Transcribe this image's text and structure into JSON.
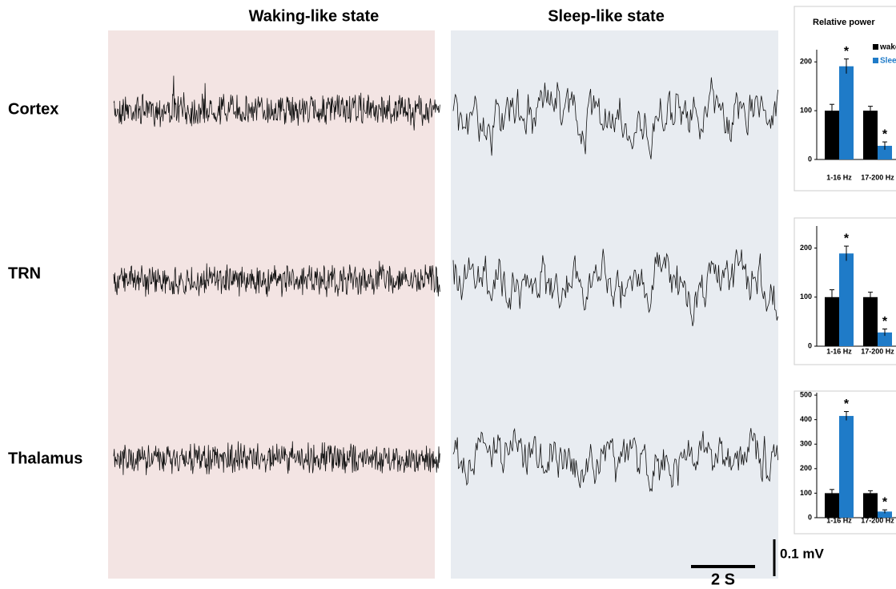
{
  "state_titles": [
    "Waking-like state",
    "Sleep-like state"
  ],
  "row_labels": [
    "Cortex",
    "TRN",
    "Thalamus"
  ],
  "scale_bar": {
    "time": "2 S",
    "voltage": "0.1 mV"
  },
  "chart_data": [
    {
      "type": "bar",
      "title": "Relative power",
      "categories": [
        "1-16 Hz",
        "17-200 Hz"
      ],
      "series": [
        {
          "name": "wake",
          "color": "#000000",
          "values": [
            100,
            100
          ],
          "errors": [
            13,
            9
          ]
        },
        {
          "name": "Sleep",
          "color": "#1f7bc8",
          "values": [
            191,
            28
          ],
          "errors": [
            15,
            8
          ],
          "annotations": [
            "*",
            "*"
          ]
        }
      ],
      "ylim": [
        0,
        225
      ],
      "yticks": [
        0,
        100,
        200
      ]
    },
    {
      "type": "bar",
      "categories": [
        "1-16 Hz",
        "17-200 Hz"
      ],
      "series": [
        {
          "color": "#000000",
          "values": [
            100,
            100
          ],
          "errors": [
            15,
            10
          ]
        },
        {
          "color": "#1f7bc8",
          "values": [
            189,
            28
          ],
          "errors": [
            15,
            7
          ],
          "annotations": [
            "*",
            "*"
          ]
        }
      ],
      "ylim": [
        0,
        245
      ],
      "yticks": [
        0,
        100,
        200
      ]
    },
    {
      "type": "bar",
      "categories": [
        "1-16 Hz",
        "17-200 Hz"
      ],
      "series": [
        {
          "color": "#000000",
          "values": [
            100,
            100
          ],
          "errors": [
            15,
            10
          ]
        },
        {
          "color": "#1f7bc8",
          "values": [
            415,
            25
          ],
          "errors": [
            18,
            7
          ],
          "annotations": [
            "*",
            "*"
          ]
        }
      ],
      "ylim": [
        0,
        510
      ],
      "yticks": [
        0,
        100,
        200,
        300,
        400,
        500
      ]
    }
  ]
}
